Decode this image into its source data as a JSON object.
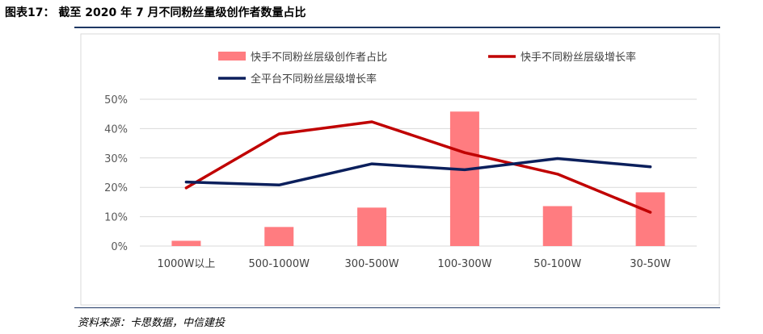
{
  "figure": {
    "title": "图表17：  截至 2020 年 7 月不同粉丝量级创作者数量占比",
    "source": "资料来源：卡思数据，中信建投"
  },
  "chart_data": {
    "type": "bar",
    "categories": [
      "1000W以上",
      "500-1000W",
      "300-500W",
      "100-300W",
      "50-100W",
      "30-50W"
    ],
    "series": [
      {
        "name": "快手不同粉丝层级创作者占比",
        "type": "bar",
        "color": "#ff7c80",
        "values": [
          1.8,
          6.5,
          13.1,
          45.8,
          13.6,
          18.3
        ]
      },
      {
        "name": "快手不同粉丝层级增长率",
        "type": "line",
        "color": "#c00000",
        "values": [
          19.8,
          38.2,
          42.3,
          31.8,
          24.5,
          11.5
        ]
      },
      {
        "name": "全平台不同粉丝层级增长率",
        "type": "line",
        "color": "#0b1f5c",
        "values": [
          21.8,
          20.8,
          28.0,
          26.0,
          29.8,
          27.0
        ]
      }
    ],
    "ylim": [
      0,
      50
    ],
    "yticks": [
      "0%",
      "10%",
      "20%",
      "30%",
      "40%",
      "50%"
    ],
    "grid": true,
    "legend": "top"
  }
}
